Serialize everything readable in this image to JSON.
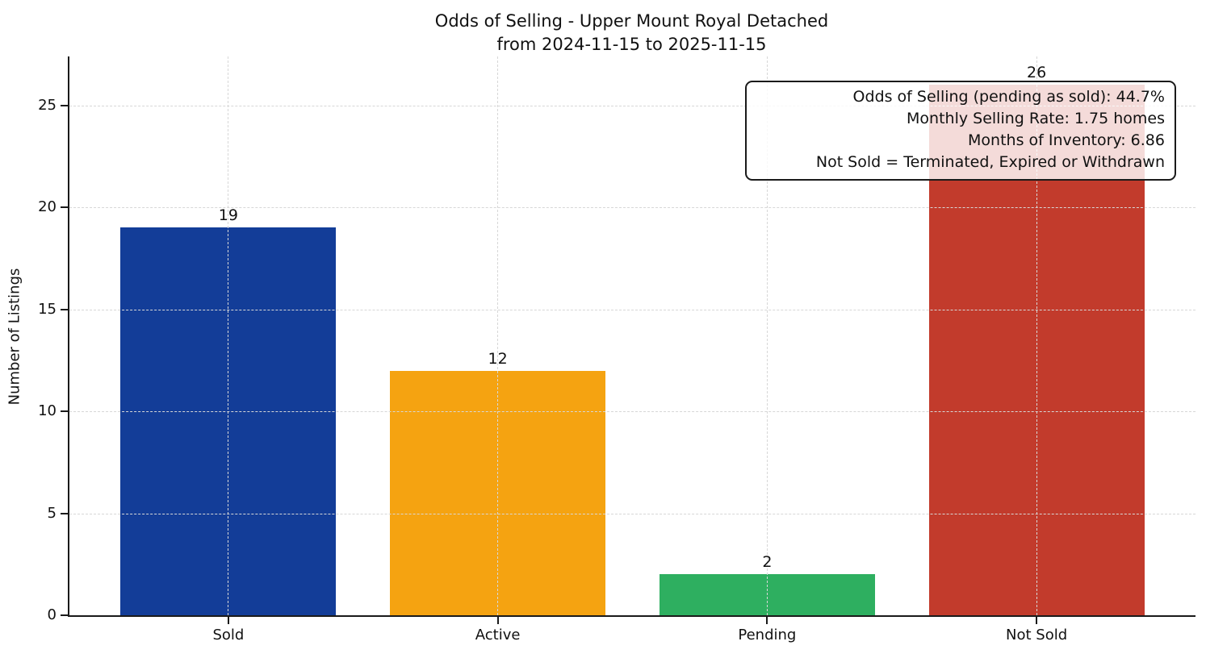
{
  "title": {
    "line1": "Odds of Selling - Upper Mount Royal Detached",
    "line2": "from 2024-11-15 to 2025-11-15"
  },
  "chart_data": {
    "type": "bar",
    "title": "Odds of Selling - Upper Mount Royal Detached\nfrom 2024-11-15 to 2025-11-15",
    "categories": [
      "Sold",
      "Active",
      "Pending",
      "Not Sold"
    ],
    "values": [
      19,
      12,
      2,
      26
    ],
    "bar_colors": [
      "#133d98",
      "#f5a311",
      "#2eaf60",
      "#c23b2c"
    ],
    "xlabel": "",
    "ylabel": "Number of Listings",
    "ylim": [
      0,
      27.4
    ],
    "yticks": [
      0,
      5,
      10,
      15,
      20,
      25
    ],
    "grid": "dashed horizontal and vertical gridlines",
    "legend": "none",
    "annotation": {
      "lines": [
        "Odds of Selling (pending as sold): 44.7%",
        "Monthly Selling Rate: 1.75 homes",
        "Months of Inventory: 6.86",
        "Not Sold = Terminated, Expired or Withdrawn"
      ]
    }
  },
  "colors": {
    "background": "#ffffff",
    "axis": "#1a1a1a",
    "grid": "#d7d7d7",
    "text": "#111111",
    "annotation_bg": "rgba(255,255,255,0.82)"
  }
}
